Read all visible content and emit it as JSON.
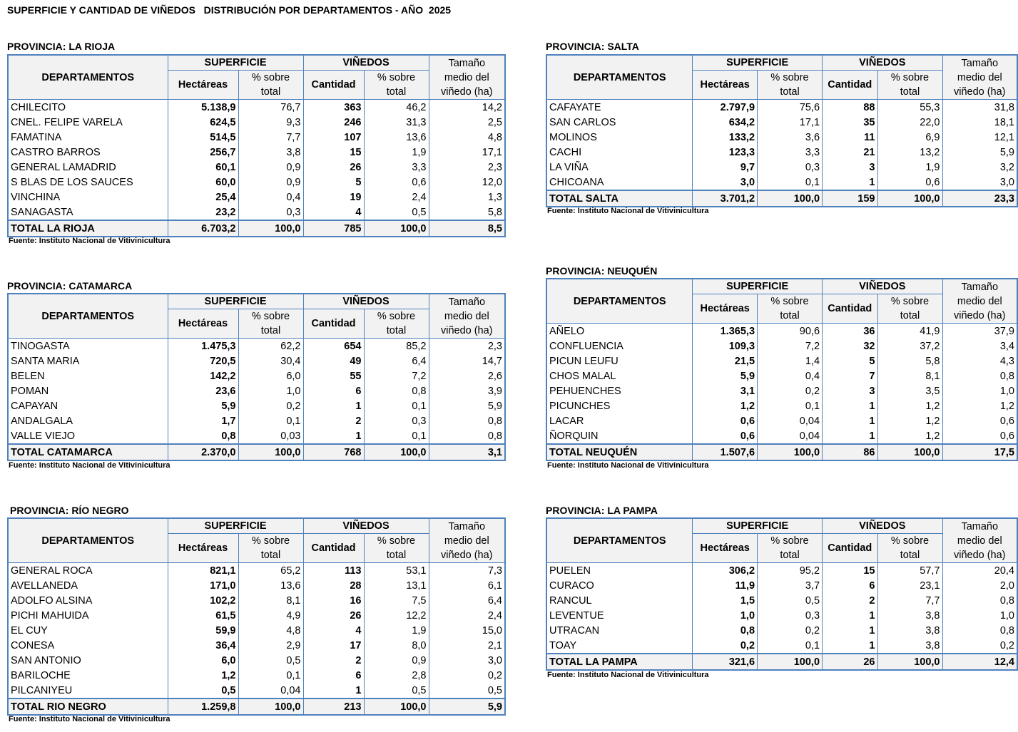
{
  "title": "SUPERFICIE Y CANTIDAD DE VIÑEDOS   DISTRIBUCIÓN POR DEPARTAMENTOS - AÑO  2025",
  "headers": {
    "departamentos": "DEPARTAMENTOS",
    "superficie": "SUPERFICIE",
    "vinedos": "VIÑEDOS",
    "tamano": "Tamaño medio del viñedo (ha)",
    "hectareas": "Hectáreas",
    "pct": "% sobre total",
    "cantidad": "Cantidad"
  },
  "source": "Fuente: Instituto Nacional de Vitivinicultura",
  "tables": [
    {
      "province": "PROVINCIA: LA RIOJA",
      "rows": [
        [
          "CHILECITO",
          "5.138,9",
          "76,7",
          "363",
          "46,2",
          "14,2"
        ],
        [
          "CNEL. FELIPE VARELA",
          "624,5",
          "9,3",
          "246",
          "31,3",
          "2,5"
        ],
        [
          "FAMATINA",
          "514,5",
          "7,7",
          "107",
          "13,6",
          "4,8"
        ],
        [
          "CASTRO BARROS",
          "256,7",
          "3,8",
          "15",
          "1,9",
          "17,1"
        ],
        [
          "GENERAL LAMADRID",
          "60,1",
          "0,9",
          "26",
          "3,3",
          "2,3"
        ],
        [
          "S BLAS DE LOS SAUCES",
          "60,0",
          "0,9",
          "5",
          "0,6",
          "12,0"
        ],
        [
          "VINCHINA",
          "25,4",
          "0,4",
          "19",
          "2,4",
          "1,3"
        ],
        [
          "SANAGASTA",
          "23,2",
          "0,3",
          "4",
          "0,5",
          "5,8"
        ]
      ],
      "total": [
        "TOTAL LA RIOJA",
        "6.703,2",
        "100,0",
        "785",
        "100,0",
        "8,5"
      ]
    },
    {
      "province": "PROVINCIA: SALTA",
      "rows": [
        [
          "CAFAYATE",
          "2.797,9",
          "75,6",
          "88",
          "55,3",
          "31,8"
        ],
        [
          "SAN CARLOS",
          "634,2",
          "17,1",
          "35",
          "22,0",
          "18,1"
        ],
        [
          "MOLINOS",
          "133,2",
          "3,6",
          "11",
          "6,9",
          "12,1"
        ],
        [
          "CACHI",
          "123,3",
          "3,3",
          "21",
          "13,2",
          "5,9"
        ],
        [
          "LA VIÑA",
          "9,7",
          "0,3",
          "3",
          "1,9",
          "3,2"
        ],
        [
          "CHICOANA",
          "3,0",
          "0,1",
          "1",
          "0,6",
          "3,0"
        ]
      ],
      "total": [
        "TOTAL SALTA",
        "3.701,2",
        "100,0",
        "159",
        "100,0",
        "23,3"
      ]
    },
    {
      "province": "PROVINCIA: CATAMARCA",
      "rows": [
        [
          "TINOGASTA",
          "1.475,3",
          "62,2",
          "654",
          "85,2",
          "2,3"
        ],
        [
          "SANTA MARIA",
          "720,5",
          "30,4",
          "49",
          "6,4",
          "14,7"
        ],
        [
          "BELEN",
          "142,2",
          "6,0",
          "55",
          "7,2",
          "2,6"
        ],
        [
          "POMAN",
          "23,6",
          "1,0",
          "6",
          "0,8",
          "3,9"
        ],
        [
          "CAPAYAN",
          "5,9",
          "0,2",
          "1",
          "0,1",
          "5,9"
        ],
        [
          "ANDALGALA",
          "1,7",
          "0,1",
          "2",
          "0,3",
          "0,8"
        ],
        [
          "VALLE VIEJO",
          "0,8",
          "0,03",
          "1",
          "0,1",
          "0,8"
        ]
      ],
      "total": [
        "TOTAL CATAMARCA",
        "2.370,0",
        "100,0",
        "768",
        "100,0",
        "3,1"
      ]
    },
    {
      "province": "PROVINCIA: NEUQUÉN",
      "rows": [
        [
          "AÑELO",
          "1.365,3",
          "90,6",
          "36",
          "41,9",
          "37,9"
        ],
        [
          "CONFLUENCIA",
          "109,3",
          "7,2",
          "32",
          "37,2",
          "3,4"
        ],
        [
          "PICUN LEUFU",
          "21,5",
          "1,4",
          "5",
          "5,8",
          "4,3"
        ],
        [
          "CHOS MALAL",
          "5,9",
          "0,4",
          "7",
          "8,1",
          "0,8"
        ],
        [
          "PEHUENCHES",
          "3,1",
          "0,2",
          "3",
          "3,5",
          "1,0"
        ],
        [
          "PICUNCHES",
          "1,2",
          "0,1",
          "1",
          "1,2",
          "1,2"
        ],
        [
          "LACAR",
          "0,6",
          "0,04",
          "1",
          "1,2",
          "0,6"
        ],
        [
          "ÑORQUIN",
          "0,6",
          "0,04",
          "1",
          "1,2",
          "0,6"
        ]
      ],
      "total": [
        "TOTAL  NEUQUÉN",
        "1.507,6",
        "100,0",
        "86",
        "100,0",
        "17,5"
      ]
    },
    {
      "province": "PROVINCIA: RÍO NEGRO",
      "rows": [
        [
          "GENERAL ROCA",
          "821,1",
          "65,2",
          "113",
          "53,1",
          "7,3"
        ],
        [
          "AVELLANEDA",
          "171,0",
          "13,6",
          "28",
          "13,1",
          "6,1"
        ],
        [
          "ADOLFO ALSINA",
          "102,2",
          "8,1",
          "16",
          "7,5",
          "6,4"
        ],
        [
          "PICHI MAHUIDA",
          "61,5",
          "4,9",
          "26",
          "12,2",
          "2,4"
        ],
        [
          "EL CUY",
          "59,9",
          "4,8",
          "4",
          "1,9",
          "15,0"
        ],
        [
          "CONESA",
          "36,4",
          "2,9",
          "17",
          "8,0",
          "2,1"
        ],
        [
          "SAN ANTONIO",
          "6,0",
          "0,5",
          "2",
          "0,9",
          "3,0"
        ],
        [
          "BARILOCHE",
          "1,2",
          "0,1",
          "6",
          "2,8",
          "0,2"
        ],
        [
          "PILCANIYEU",
          "0,5",
          "0,04",
          "1",
          "0,5",
          "0,5"
        ]
      ],
      "total": [
        "TOTAL RIO NEGRO",
        "1.259,8",
        "100,0",
        "213",
        "100,0",
        "5,9"
      ]
    },
    {
      "province": "PROVINCIA: LA PAMPA",
      "rows": [
        [
          "PUELEN",
          "306,2",
          "95,2",
          "15",
          "57,7",
          "20,4"
        ],
        [
          "CURACO",
          "11,9",
          "3,7",
          "6",
          "23,1",
          "2,0"
        ],
        [
          "RANCUL",
          "1,5",
          "0,5",
          "2",
          "7,7",
          "0,8"
        ],
        [
          "LEVENTUE",
          "1,0",
          "0,3",
          "1",
          "3,8",
          "1,0"
        ],
        [
          "UTRACAN",
          "0,8",
          "0,2",
          "1",
          "3,8",
          "0,8"
        ],
        [
          "TOAY",
          "0,2",
          "0,1",
          "1",
          "3,8",
          "0,2"
        ]
      ],
      "total": [
        "TOTAL LA PAMPA",
        "321,6",
        "100,0",
        "26",
        "100,0",
        "12,4"
      ]
    }
  ]
}
